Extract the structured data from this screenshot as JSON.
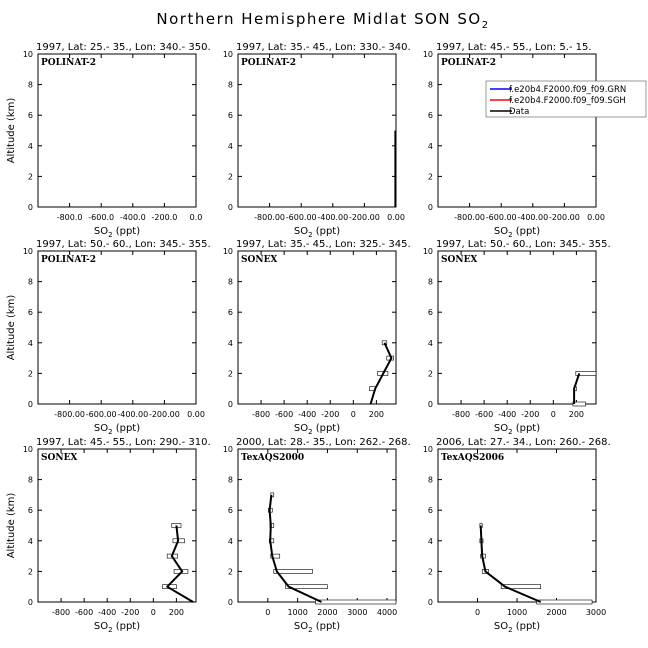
{
  "figure": {
    "title_main": "Northern Hemisphere Midlat SON SO",
    "title_sub": "2",
    "xlabel_main": "SO",
    "xlabel_sub": "2",
    "xlabel_unit": " (ppt)",
    "ylabel": "Altitude (km)"
  },
  "legend": {
    "entries": [
      {
        "label": "f.e20b4.F2000.f09_f09.GRN",
        "color": "#0000ff"
      },
      {
        "label": "f.e20b4.F2000.f09_f09.SGH",
        "color": "#ff0000"
      },
      {
        "label": "Data",
        "color": "#000000"
      }
    ]
  },
  "chart_data": [
    {
      "type": "line",
      "title": "1997, Lat: 25.- 35., Lon: 340.- 350.",
      "campaign": "POLINAT-2",
      "xlim": [
        -1000,
        0
      ],
      "ylim": [
        0,
        10
      ],
      "xticks": [
        -800,
        -600,
        -400,
        -200,
        0
      ],
      "xtick_labels": [
        "-800.0",
        "-600.0",
        "-400.0",
        "-200.0",
        "0.0"
      ],
      "yticks": [
        0,
        2,
        4,
        6,
        8,
        10
      ],
      "ytick_labels": [
        "0",
        "2",
        "4",
        "6",
        "8",
        "10"
      ],
      "series": [],
      "boxes": []
    },
    {
      "type": "line",
      "title": "1997, Lat: 35.- 45., Lon: 330.- 340.",
      "campaign": "POLINAT-2",
      "xlim": [
        -1000,
        0
      ],
      "ylim": [
        0,
        10
      ],
      "xticks": [
        -800,
        -600,
        -400,
        -200,
        0
      ],
      "xtick_labels": [
        "-800.00",
        "-600.00",
        "-400.00",
        "-200.00",
        "0.00"
      ],
      "yticks": [
        0,
        2,
        4,
        6,
        8,
        10
      ],
      "ytick_labels": [
        "0",
        "2",
        "4",
        "6",
        "8",
        "10"
      ],
      "series": [],
      "boxes": [],
      "marker_x": 0
    },
    {
      "type": "line",
      "title": "1997, Lat: 45.- 55., Lon: 5.- 15.",
      "campaign": "POLINAT-2",
      "xlim": [
        -1000,
        0
      ],
      "ylim": [
        0,
        10
      ],
      "xticks": [
        -800,
        -600,
        -400,
        -200,
        0
      ],
      "xtick_labels": [
        "-800.00",
        "-600.00",
        "-400.00",
        "-200.00",
        "0.00"
      ],
      "yticks": [
        0,
        2,
        4,
        6,
        8,
        10
      ],
      "ytick_labels": [
        "0",
        "2",
        "4",
        "6",
        "8",
        "10"
      ],
      "series": [],
      "boxes": [],
      "legend": true
    },
    {
      "type": "line",
      "title": "1997, Lat: 50.- 60., Lon: 345.- 355.",
      "campaign": "POLINAT-2",
      "xlim": [
        -1000,
        0
      ],
      "ylim": [
        0,
        10
      ],
      "xticks": [
        -800,
        -600,
        -400,
        -200,
        0
      ],
      "xtick_labels": [
        "-800.00",
        "-600.00",
        "-400.00",
        "-200.00",
        "0.00"
      ],
      "yticks": [
        0,
        2,
        4,
        6,
        8,
        10
      ],
      "ytick_labels": [
        "0",
        "2",
        "4",
        "6",
        "8",
        "10"
      ],
      "series": [],
      "boxes": []
    },
    {
      "type": "line",
      "title": "1997, Lat: 35.- 45., Lon: 325.- 345.",
      "campaign": "SONEX",
      "xlim": [
        -1000,
        370
      ],
      "ylim": [
        0,
        10
      ],
      "xticks": [
        -800,
        -600,
        -400,
        -200,
        0,
        200
      ],
      "xtick_labels": [
        "-800",
        "-600",
        "-400",
        "-200",
        "0",
        "200"
      ],
      "yticks": [
        0,
        2,
        4,
        6,
        8,
        10
      ],
      "ytick_labels": [
        "0",
        "2",
        "4",
        "6",
        "8",
        "10"
      ],
      "series": [
        {
          "name": "Data",
          "color": "#000000",
          "x": [
            150,
            190,
            260,
            330,
            270
          ],
          "y": [
            0,
            1,
            2,
            3,
            4
          ]
        }
      ],
      "boxes": [
        [
          140,
          190,
          1
        ],
        [
          210,
          300,
          2
        ],
        [
          290,
          350,
          3
        ],
        [
          250,
          290,
          4
        ]
      ]
    },
    {
      "type": "line",
      "title": "1997, Lat: 50.- 60., Lon: 345.- 355.",
      "campaign": "SONEX",
      "xlim": [
        -1000,
        370
      ],
      "ylim": [
        0,
        10
      ],
      "xticks": [
        -800,
        -600,
        -400,
        -200,
        0,
        200
      ],
      "xtick_labels": [
        "-800",
        "-600",
        "-400",
        "-200",
        "0",
        "200"
      ],
      "yticks": [
        0,
        2,
        4,
        6,
        8,
        10
      ],
      "ytick_labels": [
        "0",
        "2",
        "4",
        "6",
        "8",
        "10"
      ],
      "series": [
        {
          "name": "Data",
          "color": "#000000",
          "x": [
            180,
            180,
            225
          ],
          "y": [
            0,
            1,
            2
          ]
        }
      ],
      "boxes": [
        [
          170,
          280,
          0
        ],
        [
          180,
          200,
          1
        ],
        [
          195,
          375,
          2
        ]
      ]
    },
    {
      "type": "line",
      "title": "1997, Lat: 45.- 55., Lon: 290.- 310.",
      "campaign": "SONEX",
      "xlim": [
        -1000,
        370
      ],
      "ylim": [
        0,
        10
      ],
      "xticks": [
        -800,
        -600,
        -400,
        -200,
        0,
        200
      ],
      "xtick_labels": [
        "-800",
        "-600",
        "-400",
        "-200",
        "0",
        "200"
      ],
      "yticks": [
        0,
        2,
        4,
        6,
        8,
        10
      ],
      "ytick_labels": [
        "0",
        "2",
        "4",
        "6",
        "8",
        "10"
      ],
      "series": [
        {
          "name": "Data",
          "color": "#000000",
          "x": [
            345,
            120,
            250,
            160,
            215,
            200
          ],
          "y": [
            0,
            1,
            2,
            3,
            4,
            5
          ]
        }
      ],
      "boxes": [
        [
          80,
          200,
          1
        ],
        [
          180,
          300,
          2
        ],
        [
          120,
          210,
          3
        ],
        [
          170,
          270,
          4
        ],
        [
          160,
          240,
          5
        ]
      ]
    },
    {
      "type": "line",
      "title": "2000, Lat: 28.- 35., Lon: 262.- 268.",
      "campaign": "TexAQS2000",
      "xlim": [
        -1000,
        4300
      ],
      "ylim": [
        0,
        10
      ],
      "xticks": [
        0,
        1000,
        2000,
        3000,
        4000
      ],
      "xtick_labels": [
        "0",
        "1000",
        "2000",
        "3000",
        "4000"
      ],
      "yticks": [
        0,
        2,
        4,
        6,
        8,
        10
      ],
      "ytick_labels": [
        "0",
        "2",
        "4",
        "6",
        "8",
        "10"
      ],
      "series": [
        {
          "name": "Data",
          "color": "#000000",
          "x": [
            1800,
            700,
            300,
            150,
            80,
            100,
            60,
            120
          ],
          "y": [
            0,
            1,
            2,
            3,
            4,
            5,
            6,
            7
          ]
        }
      ],
      "boxes": [
        [
          1600,
          4300,
          0
        ],
        [
          600,
          2000,
          1
        ],
        [
          200,
          1500,
          2
        ],
        [
          100,
          400,
          3
        ],
        [
          50,
          200,
          4
        ],
        [
          70,
          200,
          5
        ],
        [
          20,
          150,
          6
        ],
        [
          100,
          200,
          7
        ]
      ]
    },
    {
      "type": "line",
      "title": "2006, Lat: 27.- 34., Lon: 260.- 268.",
      "campaign": "TexAQS2006",
      "xlim": [
        -1000,
        3000
      ],
      "ylim": [
        0,
        10
      ],
      "xticks": [
        0,
        1000,
        2000,
        3000
      ],
      "xtick_labels": [
        "0",
        "1000",
        "2000",
        "3000"
      ],
      "yticks": [
        0,
        2,
        4,
        6,
        8,
        10
      ],
      "ytick_labels": [
        "0",
        "2",
        "4",
        "6",
        "8",
        "10"
      ],
      "series": [
        {
          "name": "Data",
          "color": "#000000",
          "x": [
            1600,
            700,
            200,
            120,
            100,
            80
          ],
          "y": [
            0,
            1,
            2,
            3,
            4,
            5
          ]
        }
      ],
      "boxes": [
        [
          1500,
          2900,
          0
        ],
        [
          600,
          1600,
          1
        ],
        [
          120,
          280,
          2
        ],
        [
          80,
          200,
          3
        ],
        [
          60,
          140,
          4
        ],
        [
          60,
          120,
          5
        ]
      ]
    }
  ]
}
